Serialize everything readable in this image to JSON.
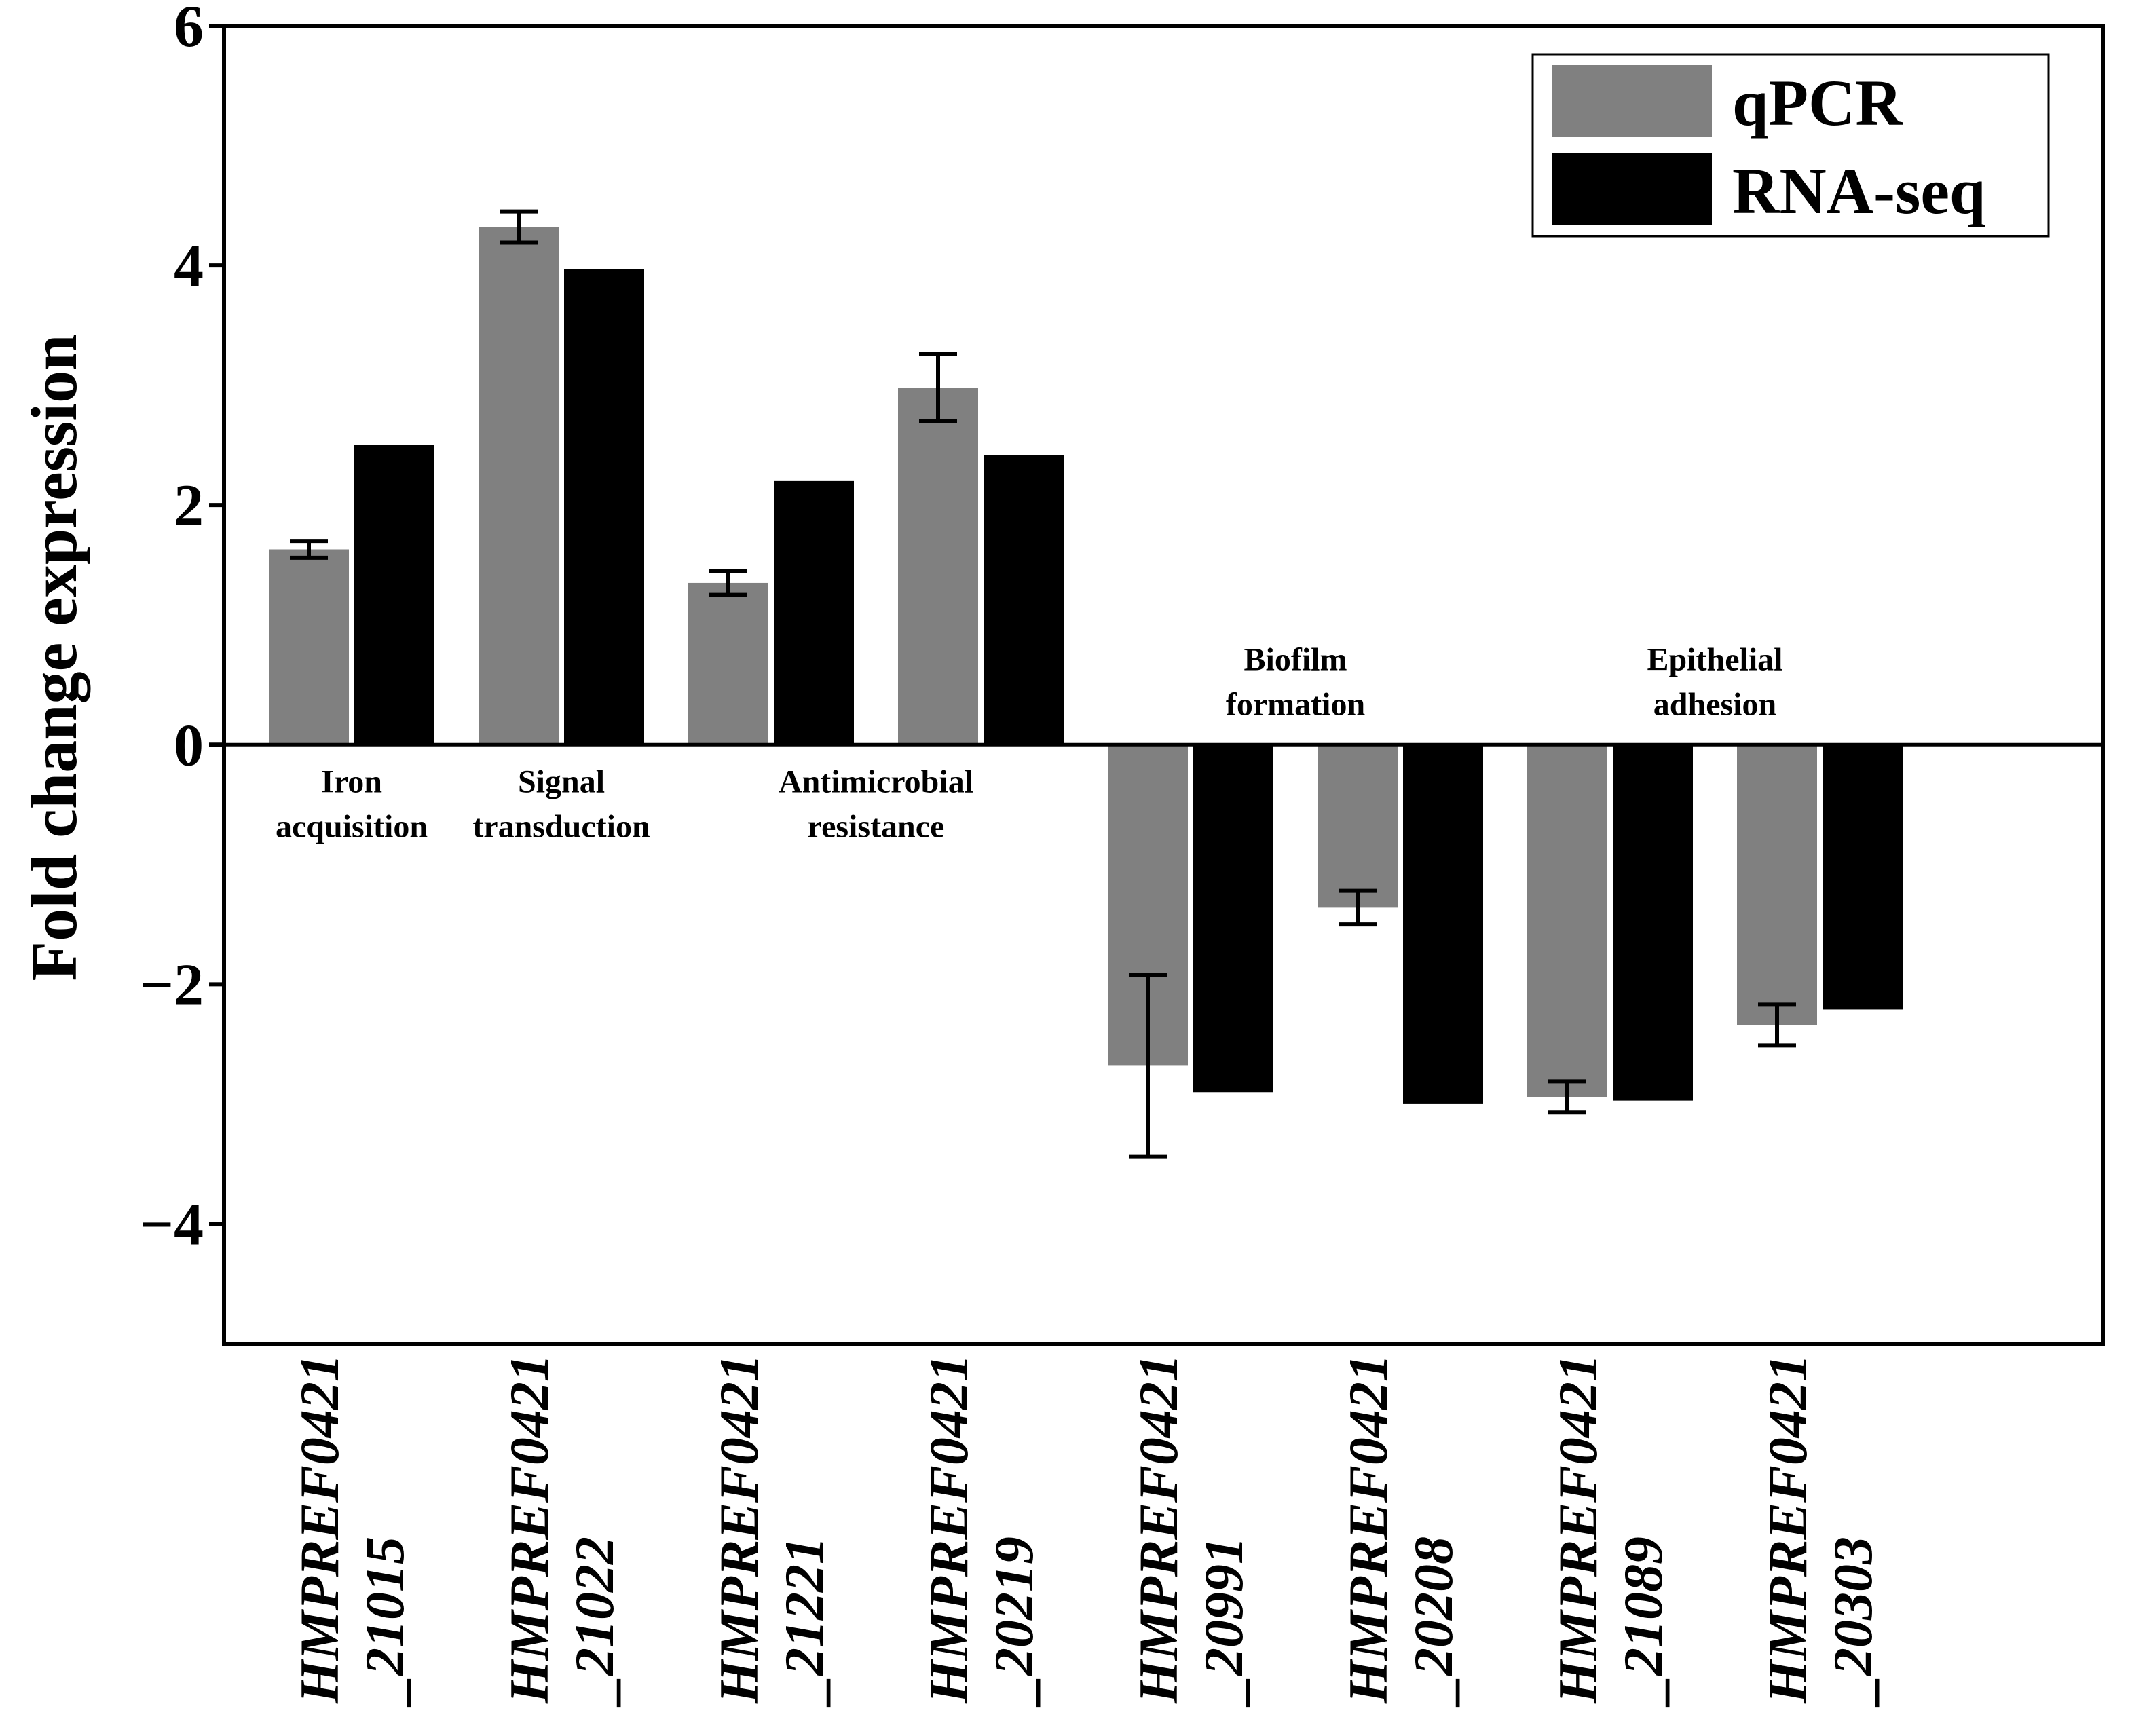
{
  "chart_data": {
    "type": "bar",
    "ylabel": "Fold change expression",
    "xlabel": "",
    "ylim": [
      -5,
      6
    ],
    "yticks": [
      6,
      4,
      2,
      0,
      -2,
      -4
    ],
    "ytick_labels": [
      "6",
      "4",
      "2",
      "0",
      "−2",
      "−4"
    ],
    "grid": false,
    "legend_position": "top-right",
    "categories": [
      {
        "line1": "HMPREF0421",
        "line2": "_21015"
      },
      {
        "line1": "HMPREF0421",
        "line2": "_21022"
      },
      {
        "line1": "HMPREF0421",
        "line2": "_21221"
      },
      {
        "line1": "HMPREF0421",
        "line2": "_20219"
      },
      {
        "line1": "HMPREF0421",
        "line2": "_20991"
      },
      {
        "line1": "HMPREF0421",
        "line2": "_20208"
      },
      {
        "line1": "HMPREF0421",
        "line2": "_21089"
      },
      {
        "line1": "HMPREF0421",
        "line2": "_20303"
      }
    ],
    "series": [
      {
        "name": "qPCR",
        "color": "#808080",
        "values": [
          1.63,
          4.32,
          1.35,
          2.98,
          -2.68,
          -1.36,
          -2.94,
          -2.34
        ],
        "errors": [
          0.07,
          0.13,
          0.1,
          0.28,
          0.76,
          0.14,
          0.13,
          0.17
        ]
      },
      {
        "name": "RNA-seq",
        "color": "#000000",
        "values": [
          2.5,
          3.97,
          2.2,
          2.42,
          -2.9,
          -3.0,
          -2.97,
          -2.21
        ]
      }
    ],
    "annotations": [
      {
        "lines": [
          "Iron",
          "acquisition"
        ],
        "group": [
          0,
          0
        ],
        "side": "below"
      },
      {
        "lines": [
          "Signal",
          "transduction"
        ],
        "group": [
          1,
          1
        ],
        "side": "below"
      },
      {
        "lines": [
          "Antimicrobial",
          "resistance"
        ],
        "group": [
          2,
          3
        ],
        "side": "below"
      },
      {
        "lines": [
          "Biofilm",
          "formation"
        ],
        "group": [
          4,
          5
        ],
        "side": "above"
      },
      {
        "lines": [
          "Epithelial",
          "adhesion"
        ],
        "group": [
          6,
          7
        ],
        "side": "above"
      }
    ]
  }
}
